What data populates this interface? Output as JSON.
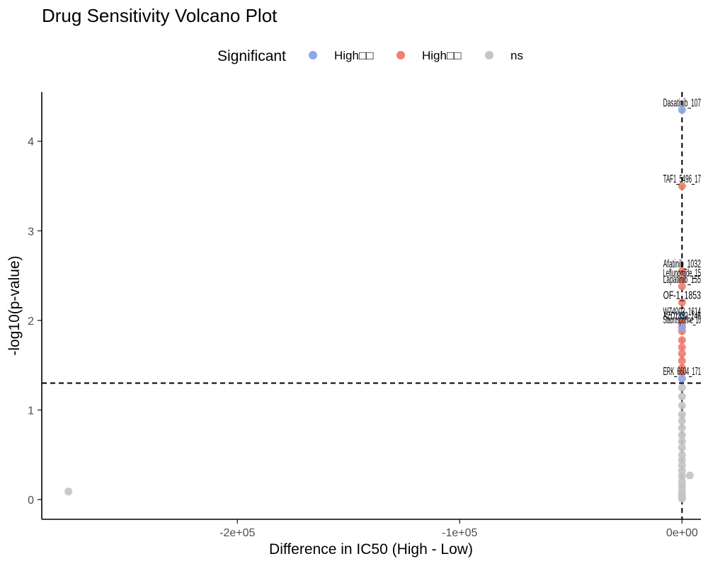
{
  "chart_data": {
    "type": "scatter",
    "title": "Drug Sensitivity Volcano Plot",
    "xlabel": "Difference in IC50 (High - Low)",
    "ylabel": "-log10(p-value)",
    "xlim": [
      -288000,
      8500
    ],
    "ylim": [
      -0.22,
      4.55
    ],
    "x_ticks": [
      {
        "value": -200000,
        "label": "-2e+05"
      },
      {
        "value": -100000,
        "label": "-1e+05"
      },
      {
        "value": 0,
        "label": "0e+00"
      }
    ],
    "y_ticks": [
      {
        "value": 0,
        "label": "0"
      },
      {
        "value": 1,
        "label": "1"
      },
      {
        "value": 2,
        "label": "2"
      },
      {
        "value": 3,
        "label": "3"
      },
      {
        "value": 4,
        "label": "4"
      }
    ],
    "reference_lines": {
      "vertical_x": 0,
      "horizontal_y": 1.3
    },
    "legend": {
      "title": "Significant",
      "position": "top",
      "entries": [
        {
          "key": "high_blue",
          "label": "High□□",
          "color": "#8da8e8"
        },
        {
          "key": "high_red",
          "label": "High□□",
          "color": "#f08070"
        },
        {
          "key": "ns",
          "label": "ns",
          "color": "#c4c4c4"
        }
      ]
    },
    "series": [
      {
        "name": "high_blue",
        "points": [
          {
            "x": 0,
            "y": 4.35,
            "label": "Dasatinib_107"
          },
          {
            "x": 0,
            "y": 1.35,
            "label": "ERK_6604_171"
          },
          {
            "x": 0,
            "y": 1.92
          },
          {
            "x": 0,
            "y": 2.05
          }
        ]
      },
      {
        "name": "high_red",
        "points": [
          {
            "x": 0,
            "y": 3.5,
            "label": "TAF1_5496_17"
          },
          {
            "x": 0,
            "y": 2.55,
            "label": "Afatinib_1032"
          },
          {
            "x": 0,
            "y": 2.45,
            "label": "Leflunomide_15"
          },
          {
            "x": 0,
            "y": 2.38,
            "label": "Lapatinib_155"
          },
          {
            "x": 0,
            "y": 2.2,
            "label": "OF-1_1853"
          },
          {
            "x": 0,
            "y": 2.02,
            "label": "WZ4003_1614"
          },
          {
            "x": 0,
            "y": 1.97,
            "label": "AZD1332_146"
          },
          {
            "x": 0,
            "y": 1.93,
            "label": "Staurosporine_10"
          },
          {
            "x": 0,
            "y": 1.88
          },
          {
            "x": 0,
            "y": 1.78
          },
          {
            "x": 0,
            "y": 1.7
          },
          {
            "x": 0,
            "y": 1.63
          },
          {
            "x": 0,
            "y": 1.55
          },
          {
            "x": 0,
            "y": 1.47
          },
          {
            "x": 0,
            "y": 1.42
          }
        ]
      },
      {
        "name": "ns",
        "points": [
          {
            "x": -276000,
            "y": 0.09
          },
          {
            "x": 3500,
            "y": 0.27
          },
          {
            "x": 0,
            "y": 1.25
          },
          {
            "x": 0,
            "y": 1.15
          },
          {
            "x": 0,
            "y": 1.05
          },
          {
            "x": 0,
            "y": 0.95
          },
          {
            "x": 0,
            "y": 0.88
          },
          {
            "x": 0,
            "y": 0.8
          },
          {
            "x": 0,
            "y": 0.72
          },
          {
            "x": 0,
            "y": 0.65
          },
          {
            "x": 0,
            "y": 0.58
          },
          {
            "x": 0,
            "y": 0.5
          },
          {
            "x": 0,
            "y": 0.44
          },
          {
            "x": 0,
            "y": 0.38
          },
          {
            "x": 0,
            "y": 0.32
          },
          {
            "x": 0,
            "y": 0.26
          },
          {
            "x": 0,
            "y": 0.2
          },
          {
            "x": 0,
            "y": 0.15
          },
          {
            "x": 0,
            "y": 0.1
          },
          {
            "x": 0,
            "y": 0.06
          },
          {
            "x": 0,
            "y": 0.03
          },
          {
            "x": 0,
            "y": 0.01
          }
        ]
      }
    ]
  }
}
